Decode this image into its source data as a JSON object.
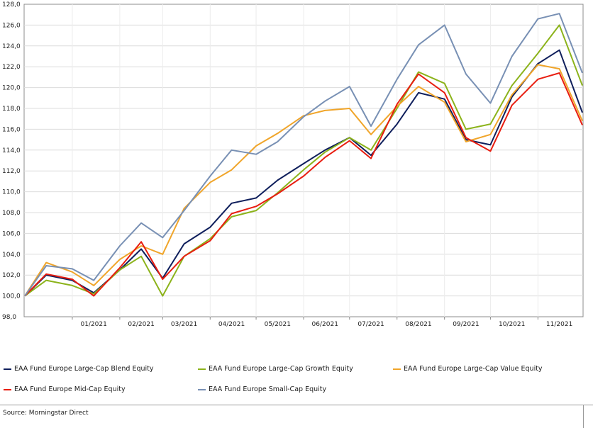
{
  "chart_data": {
    "type": "line",
    "title": "",
    "xlabel": "",
    "ylabel": "",
    "ylim": [
      98.0,
      128.0
    ],
    "y_ticks": [
      "98,0",
      "100,0",
      "102,0",
      "104,0",
      "106,0",
      "108,0",
      "110,0",
      "112,0",
      "114,0",
      "116,0",
      "118,0",
      "120,0",
      "122,0",
      "124,0",
      "126,0",
      "128,0"
    ],
    "x_ticks": [
      "01/2021",
      "02/2021",
      "03/2021",
      "04/2021",
      "05/2021",
      "06/2021",
      "07/2021",
      "08/2021",
      "09/2021",
      "10/2021",
      "11/2021"
    ],
    "grid": true,
    "legend_position": "bottom",
    "x": [
      "2020-12-01",
      "2020-12-15",
      "2021-01-01",
      "2021-01-15",
      "2021-02-01",
      "2021-02-15",
      "2021-03-01",
      "2021-03-15",
      "2021-04-01",
      "2021-04-15",
      "2021-05-01",
      "2021-05-15",
      "2021-06-01",
      "2021-06-15",
      "2021-07-01",
      "2021-07-15",
      "2021-08-01",
      "2021-08-15",
      "2021-09-01",
      "2021-09-15",
      "2021-10-01",
      "2021-10-15",
      "2021-11-01",
      "2021-11-15",
      "2021-11-30"
    ],
    "series": [
      {
        "name": "EAA Fund Europe Large-Cap Blend Equity",
        "color": "#0f1f5c",
        "values": [
          100.0,
          102.0,
          101.5,
          100.3,
          102.5,
          104.5,
          101.7,
          105.0,
          106.6,
          108.9,
          109.4,
          111.1,
          112.7,
          114.0,
          115.2,
          113.5,
          116.5,
          119.5,
          118.9,
          115.0,
          114.5,
          119.1,
          122.3,
          123.6,
          117.6
        ]
      },
      {
        "name": "EAA Fund Europe Large-Cap Growth Equity",
        "color": "#8cb31b",
        "values": [
          100.0,
          101.5,
          101.0,
          100.2,
          102.5,
          103.8,
          100.0,
          103.8,
          105.5,
          107.6,
          108.2,
          109.9,
          112.1,
          113.8,
          115.2,
          114.0,
          118.0,
          121.5,
          120.4,
          116.0,
          116.5,
          120.2,
          123.3,
          126.0,
          120.2
        ]
      },
      {
        "name": "EAA Fund Europe Large-Cap Value Equity",
        "color": "#f0a52a",
        "values": [
          100.0,
          103.2,
          102.3,
          101.0,
          103.5,
          104.8,
          104.0,
          108.4,
          110.9,
          112.1,
          114.4,
          115.6,
          117.3,
          117.8,
          118.0,
          115.5,
          118.2,
          120.1,
          118.6,
          114.8,
          115.5,
          119.3,
          122.2,
          121.8,
          116.8
        ]
      },
      {
        "name": "EAA Fund Europe Mid-Cap Equity",
        "color": "#e81d10",
        "values": [
          100.0,
          102.1,
          101.6,
          100.0,
          102.7,
          105.2,
          101.6,
          103.8,
          105.3,
          107.9,
          108.6,
          109.8,
          111.5,
          113.3,
          114.9,
          113.2,
          118.4,
          121.3,
          119.5,
          115.2,
          113.9,
          118.3,
          120.8,
          121.4,
          116.4
        ]
      },
      {
        "name": "EAA Fund Europe Small-Cap Equity",
        "color": "#7890b4",
        "values": [
          100.0,
          102.9,
          102.6,
          101.5,
          104.8,
          107.0,
          105.6,
          108.2,
          111.5,
          114.0,
          113.6,
          114.8,
          117.2,
          118.7,
          120.1,
          116.3,
          120.8,
          124.1,
          126.0,
          121.3,
          118.5,
          123.0,
          126.6,
          127.1,
          121.4
        ]
      }
    ]
  },
  "footer": {
    "source": "Source: Morningstar Direct"
  }
}
